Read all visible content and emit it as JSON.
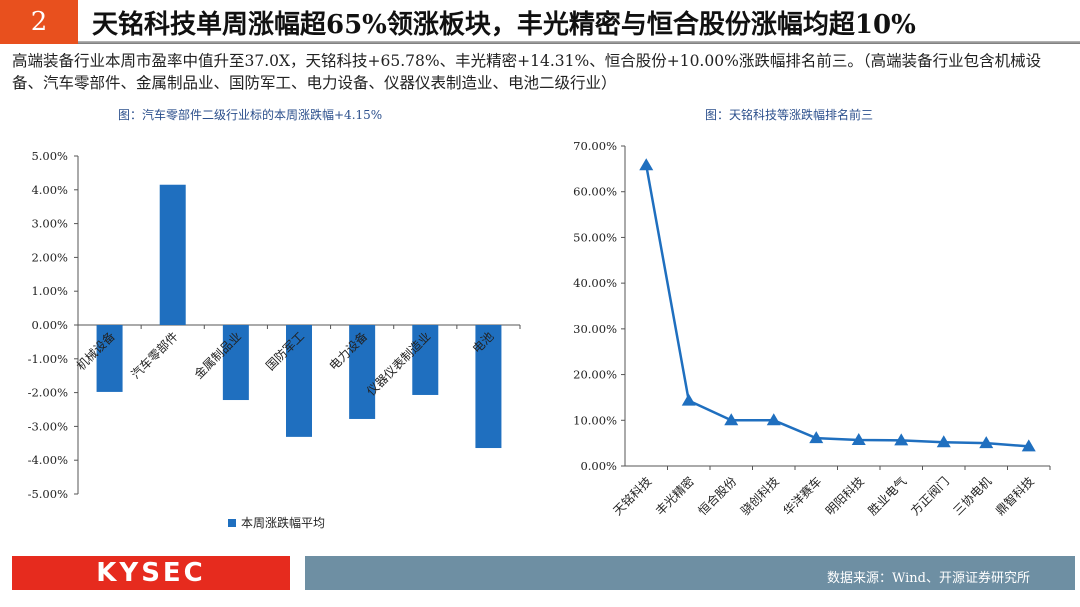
{
  "header": {
    "number": "2",
    "title": "天铭科技单周涨幅超65%领涨板块，丰光精密与恒合股份涨幅均超10%"
  },
  "summary": "高端装备行业本周市盈率中值升至37.0X，天铭科技+65.78%、丰光精密+14.31%、恒合股份+10.00%涨跌幅排名前三。（高端装备行业包含机械设备、汽车零部件、金属制品业、国防军工、电力设备、仪器仪表制造业、电池二级行业）",
  "chart_data": [
    {
      "type": "bar",
      "title": "图：汽车零部件二级行业标的本周涨跌幅+4.15%",
      "categories": [
        "机械设备",
        "汽车零部件",
        "金属制品业",
        "国防军工",
        "电力设备",
        "仪器仪表制造业",
        "电池"
      ],
      "series": [
        {
          "name": "本周涨跌幅平均",
          "values": [
            -1.98,
            4.15,
            -2.22,
            -3.31,
            -2.78,
            -2.07,
            -3.64
          ]
        }
      ],
      "ylim": [
        -5,
        5
      ],
      "yticks": [
        "5.00%",
        "4.00%",
        "3.00%",
        "2.00%",
        "1.00%",
        "0.00%",
        "-1.00%",
        "-2.00%",
        "-3.00%",
        "-4.00%",
        "-5.00%"
      ],
      "legend": "bottom",
      "color": "#1f6fbf"
    },
    {
      "type": "line",
      "title": "图：天铭科技等涨跌幅排名前三",
      "categories": [
        "天铭科技",
        "丰光精密",
        "恒合股份",
        "骁创科技",
        "华洋赛车",
        "明阳科技",
        "胜业电气",
        "方正阀门",
        "三协电机",
        "鼎智科技"
      ],
      "values": [
        65.78,
        14.31,
        10.0,
        10.0,
        6.1,
        5.7,
        5.6,
        5.2,
        5.0,
        4.3
      ],
      "ylim": [
        0,
        70
      ],
      "yticks": [
        "70.00%",
        "60.00%",
        "50.00%",
        "40.00%",
        "30.00%",
        "20.00%",
        "10.00%",
        "0.00%"
      ],
      "marker": "triangle",
      "color": "#1f6fbf"
    }
  ],
  "footer": {
    "logo": "KYSEC",
    "source": "数据来源：Wind、开源证券研究所"
  }
}
